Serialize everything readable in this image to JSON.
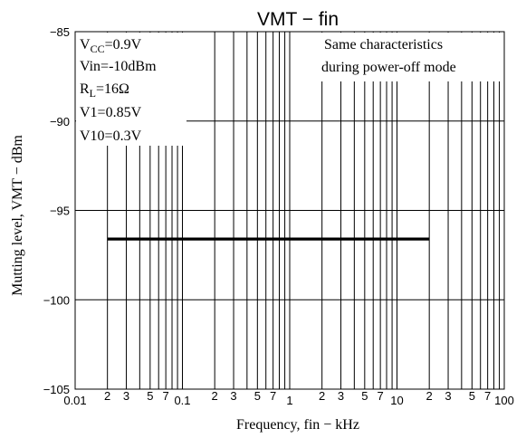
{
  "chart_data": {
    "type": "line",
    "title": "VMT − fin",
    "xlabel": "Frequency, fin − kHz",
    "ylabel": "Mutting level, VMT − dBm",
    "xscale": "log",
    "xlim": [
      0.01,
      100
    ],
    "ylim": [
      -105,
      -85
    ],
    "grid": true,
    "x_decade_labels": [
      "0.01",
      "0.1",
      "1",
      "10",
      "100"
    ],
    "x_minor_labels": [
      "2",
      "3",
      "5",
      "7"
    ],
    "y_ticks": [
      -85,
      -90,
      -95,
      -100,
      -105
    ],
    "y_tick_labels": [
      "−85",
      "−90",
      "−95",
      "−100",
      "−105"
    ],
    "series": [
      {
        "x": [
          0.02,
          20
        ],
        "y": [
          -96.6,
          -96.6
        ]
      }
    ],
    "conditions": {
      "vcc_main": "V",
      "vcc_sub": "CC",
      "vcc_value": "=0.9V",
      "vin": "Vin=-10dBm",
      "rl_main": "R",
      "rl_sub": "L",
      "rl_value": "=16Ω",
      "v1": "V1=0.85V",
      "v10": "V10=0.3V"
    },
    "note_line1": "Same characteristics",
    "note_line2": "during power-off mode"
  }
}
